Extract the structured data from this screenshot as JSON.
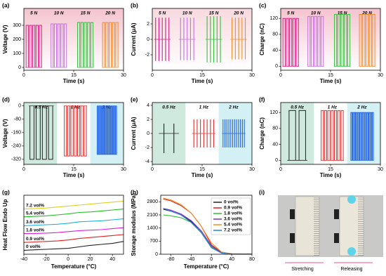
{
  "chart_data": [
    {
      "type": "pulse",
      "style": "rect",
      "label": "(a)",
      "xlabel": "Time (s)",
      "ylabel": "Voltage (V)",
      "xlim": [
        0,
        30
      ],
      "ylim": [
        -20,
        420
      ],
      "xticks": [
        0,
        15,
        30
      ],
      "yticks": [
        0,
        100,
        200,
        300
      ],
      "background": "#f4c3cf",
      "groups": [
        {
          "name": "5 N",
          "color": "#d81b85",
          "start": 0.5,
          "end": 5.5,
          "pulses": 5,
          "peak": 300
        },
        {
          "name": "10 N",
          "color": "#c46fe0",
          "start": 8,
          "end": 13,
          "pulses": 5,
          "peak": 310
        },
        {
          "name": "15 N",
          "color": "#2fc23a",
          "start": 16,
          "end": 21,
          "pulses": 5,
          "peak": 320
        },
        {
          "name": "20 N",
          "color": "#f08a2c",
          "start": 23.5,
          "end": 28.5,
          "pulses": 5,
          "peak": 320
        }
      ]
    },
    {
      "type": "pulse",
      "style": "spike",
      "label": "(b)",
      "xlabel": "Time (s)",
      "ylabel": "Current (μA)",
      "xlim": [
        0,
        30
      ],
      "ylim": [
        -4,
        4
      ],
      "xticks": [
        0,
        15,
        30
      ],
      "yticks": [
        -2,
        0,
        2
      ],
      "background": "#f7d9de",
      "groups": [
        {
          "name": "5 N",
          "color": "#d81b85",
          "start": 0.5,
          "end": 5.5,
          "pulses": 5,
          "peak": 2.8,
          "trough": -2.8
        },
        {
          "name": "10 N",
          "color": "#c46fe0",
          "start": 8,
          "end": 13,
          "pulses": 5,
          "peak": 2.8,
          "trough": -2.7
        },
        {
          "name": "15 N",
          "color": "#2fc23a",
          "start": 16,
          "end": 21,
          "pulses": 5,
          "peak": 3.0,
          "trough": -3.0
        },
        {
          "name": "20 N",
          "color": "#f08a2c",
          "start": 23.5,
          "end": 28.5,
          "pulses": 5,
          "peak": 2.8,
          "trough": -2.6
        }
      ]
    },
    {
      "type": "pulse",
      "style": "rect",
      "label": "(c)",
      "xlabel": "Time (s)",
      "ylabel": "Charge (nC)",
      "xlim": [
        0,
        30
      ],
      "ylim": [
        -10,
        145
      ],
      "xticks": [
        0,
        15,
        30
      ],
      "yticks": [
        0,
        40,
        80,
        120
      ],
      "background": "#f4c3cf",
      "groups": [
        {
          "name": "5 N",
          "color": "#d81b85",
          "start": 0.5,
          "end": 5.5,
          "pulses": 5,
          "peak": 120
        },
        {
          "name": "10 N",
          "color": "#c46fe0",
          "start": 8,
          "end": 13,
          "pulses": 5,
          "peak": 125
        },
        {
          "name": "15 N",
          "color": "#2fc23a",
          "start": 16,
          "end": 21,
          "pulses": 5,
          "peak": 130
        },
        {
          "name": "20 N",
          "color": "#f08a2c",
          "start": 23.5,
          "end": 28.5,
          "pulses": 5,
          "peak": 130
        }
      ]
    },
    {
      "type": "pulse",
      "style": "rect",
      "label": "(d)",
      "xlabel": "Time (s)",
      "ylabel": "Voltage (V)",
      "xlim": [
        0,
        30
      ],
      "ylim": [
        -350,
        20
      ],
      "xticks": [
        0,
        15,
        30
      ],
      "yticks": [
        0,
        -80,
        -160,
        -240,
        -320
      ],
      "bands": [
        {
          "xlim": [
            0,
            10
          ],
          "color": "#cfe9de"
        },
        {
          "xlim": [
            20,
            30
          ],
          "color": "#d3f1f4"
        }
      ],
      "groups": [
        {
          "name": "0.5 Hz",
          "color": "#222222",
          "start": 1.5,
          "end": 9,
          "pulses": 4,
          "peak": -320
        },
        {
          "name": "1 Hz",
          "color": "#e03030",
          "start": 12,
          "end": 19,
          "pulses": 7,
          "peak": -300
        },
        {
          "name": "2 Hz",
          "color": "#2060e0",
          "start": 22,
          "end": 28,
          "pulses": 13,
          "peak": -290
        }
      ]
    },
    {
      "type": "pulse",
      "style": "spike",
      "label": "(e)",
      "xlabel": "Time (s)",
      "ylabel": "Current (μA)",
      "xlim": [
        0,
        30
      ],
      "ylim": [
        -4.4,
        4.4
      ],
      "xticks": [
        0,
        15,
        30
      ],
      "yticks": [
        4,
        2,
        0,
        -2,
        -4
      ],
      "bands": [
        {
          "xlim": [
            0,
            10
          ],
          "color": "#cfe9de"
        },
        {
          "xlim": [
            20,
            30
          ],
          "color": "#d3f1f4"
        }
      ],
      "groups": [
        {
          "name": "0.5 Hz",
          "color": "#222222",
          "start": 2,
          "end": 8,
          "pulses": 2,
          "peak": 1.4,
          "trough": -2.8
        },
        {
          "name": "1 Hz",
          "color": "#e03030",
          "start": 12,
          "end": 19,
          "pulses": 7,
          "peak": 2,
          "trough": -2
        },
        {
          "name": "2 Hz",
          "color": "#2060e0",
          "start": 21,
          "end": 28,
          "pulses": 12,
          "peak": 2,
          "trough": -2
        }
      ]
    },
    {
      "type": "pulse",
      "style": "rect",
      "label": "(f)",
      "xlabel": "Time (s)",
      "ylabel": "Charge (nC)",
      "xlim": [
        0,
        30
      ],
      "ylim": [
        -10,
        145
      ],
      "xticks": [
        0,
        15,
        30
      ],
      "yticks": [
        0,
        40,
        80,
        120
      ],
      "bands": [
        {
          "xlim": [
            0,
            10
          ],
          "color": "#cfe9de"
        },
        {
          "xlim": [
            20,
            30
          ],
          "color": "#d3f1f4"
        }
      ],
      "groups": [
        {
          "name": "0.5 Hz",
          "color": "#222222",
          "start": 2,
          "end": 8,
          "pulses": 2,
          "peak": 125
        },
        {
          "name": "1 Hz",
          "color": "#e03030",
          "start": 12,
          "end": 19,
          "pulses": 7,
          "peak": 125
        },
        {
          "name": "2 Hz",
          "color": "#2060e0",
          "start": 21,
          "end": 28,
          "pulses": 13,
          "peak": 120
        }
      ]
    },
    {
      "type": "line",
      "label": "(g)",
      "xlabel": "Temperature (°C)",
      "ylabel": "Heat Flow Endo Up",
      "xlim": [
        -40,
        50
      ],
      "ylim": [
        0,
        6
      ],
      "xticks": [
        -40,
        -20,
        0,
        20,
        40
      ],
      "yticks": [],
      "legend": "inline",
      "x": [
        -40,
        -30,
        -20,
        -10,
        0,
        10,
        20,
        30,
        40,
        50
      ],
      "series": [
        {
          "name": "0 vol%",
          "color": "#222222",
          "values": [
            0.4,
            0.45,
            0.5,
            0.55,
            0.6,
            0.75,
            0.9,
            1.0,
            1.1,
            1.3
          ]
        },
        {
          "name": "0.9 vol%",
          "color": "#e02020",
          "values": [
            1.2,
            1.25,
            1.3,
            1.35,
            1.45,
            1.6,
            1.7,
            1.8,
            1.9,
            2.0
          ]
        },
        {
          "name": "1.8 vol%",
          "color": "#e020e0",
          "values": [
            2.1,
            2.1,
            2.15,
            2.2,
            2.3,
            2.4,
            2.45,
            2.5,
            2.6,
            2.7
          ]
        },
        {
          "name": "3.6 vol%",
          "color": "#20b0e0",
          "values": [
            2.9,
            2.95,
            3.0,
            3.05,
            3.15,
            3.3,
            3.35,
            3.4,
            3.5,
            3.6
          ]
        },
        {
          "name": "5.4 vol%",
          "color": "#20c020",
          "values": [
            3.8,
            3.85,
            3.9,
            4.0,
            4.1,
            4.25,
            4.3,
            4.4,
            4.5,
            4.6
          ]
        },
        {
          "name": "7.2 vol%",
          "color": "#e0d020",
          "values": [
            4.6,
            4.65,
            4.7,
            4.8,
            4.9,
            5.0,
            5.1,
            5.2,
            5.3,
            5.4
          ]
        }
      ]
    },
    {
      "type": "line",
      "label": "(h)",
      "xlabel": "Temperature (°C)",
      "ylabel": "Storage modulus (MPa)",
      "xlim": [
        -100,
        80
      ],
      "ylim": [
        0,
        3150
      ],
      "xticks": [
        -80,
        -40,
        0,
        40,
        80
      ],
      "yticks": [
        0,
        700,
        1400,
        2100,
        2800
      ],
      "legend": "upper right",
      "x": [
        -95,
        -80,
        -60,
        -40,
        -20,
        0,
        20,
        40,
        60,
        80
      ],
      "series": [
        {
          "name": "0 vol%",
          "color": "#222222",
          "values": [
            2400,
            2300,
            2100,
            1750,
            1200,
            400,
            80,
            20,
            10,
            10
          ]
        },
        {
          "name": "0.9 vol%",
          "color": "#e02020",
          "values": [
            2950,
            2850,
            2600,
            2200,
            1500,
            500,
            100,
            20,
            10,
            10
          ]
        },
        {
          "name": "1.8 vol%",
          "color": "#30c030",
          "values": [
            2100,
            2050,
            1950,
            1700,
            1200,
            400,
            80,
            20,
            10,
            10
          ]
        },
        {
          "name": "3.6 vol%",
          "color": "#8030c0",
          "values": [
            2450,
            2350,
            2150,
            1800,
            1250,
            450,
            80,
            20,
            10,
            10
          ]
        },
        {
          "name": "5.4 vol%",
          "color": "#f09020",
          "values": [
            3000,
            2900,
            2650,
            2200,
            1500,
            600,
            120,
            20,
            10,
            10
          ]
        },
        {
          "name": "7.2 vol%",
          "color": "#2080e0",
          "values": [
            2450,
            2300,
            2100,
            1700,
            1150,
            350,
            60,
            20,
            10,
            10
          ]
        }
      ]
    },
    {
      "type": "photo",
      "label": "(i)",
      "captions": [
        "Stretching",
        "Releasing"
      ]
    }
  ]
}
